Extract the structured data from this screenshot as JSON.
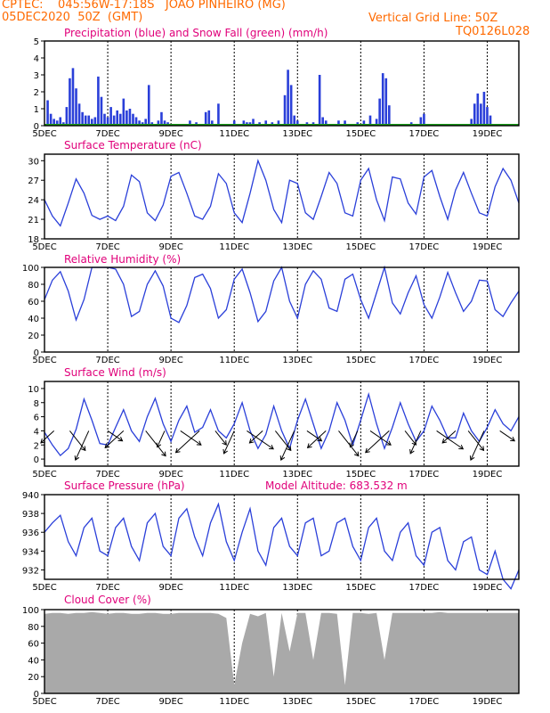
{
  "header": {
    "line1": "CPTEC:    045:56W-17:18S   JOAO PINHEIRO (MG)",
    "line2": "05DEC2020  50Z  (GMT)",
    "grid_note": "Vertical Grid Line: 50Z",
    "code": "TQ0126L028"
  },
  "colors": {
    "header": "#ff6a00",
    "title": "#e0007a",
    "line": "#2a3fd9",
    "precip": "#2a3fd9",
    "snow": "#1a9a1a",
    "cloud": "#a9a9a9",
    "grid": "#000000"
  },
  "x_labels": [
    "5DEC",
    "7DEC",
    "9DEC",
    "11DEC",
    "13DEC",
    "15DEC",
    "17DEC",
    "19DEC"
  ],
  "chart_data": [
    {
      "type": "bar",
      "title": "Precipitation (blue) and Snow Fall (green) (mm/h)",
      "xlim": [
        5,
        20
      ],
      "ylim": [
        0,
        5
      ],
      "yticks": [
        0,
        1,
        2,
        3,
        4,
        5
      ],
      "x": [
        5.1,
        5.2,
        5.3,
        5.4,
        5.5,
        5.6,
        5.7,
        5.8,
        5.9,
        6.0,
        6.1,
        6.2,
        6.3,
        6.4,
        6.5,
        6.6,
        6.7,
        6.8,
        6.9,
        7.0,
        7.1,
        7.2,
        7.3,
        7.4,
        7.5,
        7.6,
        7.7,
        7.8,
        7.9,
        8.0,
        8.1,
        8.2,
        8.3,
        8.4,
        8.5,
        8.6,
        8.7,
        8.8,
        8.9,
        9.6,
        9.8,
        10.1,
        10.2,
        10.3,
        10.5,
        11.0,
        11.3,
        11.4,
        11.5,
        11.6,
        11.8,
        12.0,
        12.2,
        12.4,
        12.6,
        12.7,
        12.8,
        12.9,
        13.0,
        13.1,
        13.3,
        13.5,
        13.7,
        13.8,
        13.9,
        14.3,
        14.5,
        14.9,
        15.1,
        15.3,
        15.5,
        15.6,
        15.7,
        15.8,
        15.9,
        16.6,
        16.9,
        17.0,
        18.5,
        18.6,
        18.7,
        18.8,
        18.9,
        19.0,
        19.1
      ],
      "values": [
        1.5,
        0.7,
        0.4,
        0.3,
        0.5,
        0.2,
        1.1,
        2.8,
        3.4,
        2.2,
        1.3,
        0.8,
        0.6,
        0.6,
        0.4,
        0.5,
        2.9,
        1.7,
        0.7,
        0.5,
        1.1,
        0.6,
        0.9,
        0.7,
        1.6,
        0.9,
        1.0,
        0.7,
        0.5,
        0.3,
        0.2,
        0.4,
        2.4,
        0.2,
        0.1,
        0.3,
        0.8,
        0.3,
        0.2,
        0.3,
        0.2,
        0.8,
        0.9,
        0.3,
        1.3,
        0.3,
        0.3,
        0.2,
        0.2,
        0.4,
        0.2,
        0.3,
        0.2,
        0.3,
        1.8,
        3.3,
        2.4,
        0.6,
        0.3,
        0.1,
        0.2,
        0.2,
        3.0,
        0.5,
        0.3,
        0.3,
        0.3,
        0.2,
        0.3,
        0.6,
        0.4,
        1.6,
        3.1,
        2.8,
        1.2,
        0.2,
        0.5,
        0.7,
        0.4,
        1.3,
        1.9,
        1.3,
        2.0,
        1.1,
        0.6
      ],
      "snow": 0
    },
    {
      "type": "line",
      "title": "Surface Temperature (nC)",
      "xlim": [
        5,
        20
      ],
      "ylim": [
        18,
        31
      ],
      "yticks": [
        18,
        21,
        24,
        27,
        30
      ],
      "x": [
        5.0,
        5.25,
        5.5,
        5.75,
        6.0,
        6.25,
        6.5,
        6.75,
        7.0,
        7.25,
        7.5,
        7.75,
        8.0,
        8.25,
        8.5,
        8.75,
        9.0,
        9.25,
        9.5,
        9.75,
        10.0,
        10.25,
        10.5,
        10.75,
        11.0,
        11.25,
        11.5,
        11.75,
        12.0,
        12.25,
        12.5,
        12.75,
        13.0,
        13.25,
        13.5,
        13.75,
        14.0,
        14.25,
        14.5,
        14.75,
        15.0,
        15.25,
        15.5,
        15.75,
        16.0,
        16.25,
        16.5,
        16.75,
        17.0,
        17.25,
        17.5,
        17.75,
        18.0,
        18.25,
        18.5,
        18.75,
        19.0,
        19.25,
        19.5,
        19.75,
        20.0
      ],
      "y": [
        24.0,
        21.5,
        20.0,
        23.5,
        27.2,
        25.0,
        21.6,
        21.0,
        21.5,
        20.8,
        23.0,
        27.8,
        26.8,
        22.0,
        20.8,
        23.2,
        27.6,
        28.2,
        25.0,
        21.5,
        21.0,
        23.0,
        28.0,
        26.5,
        22.0,
        20.5,
        25.0,
        30.0,
        27.0,
        22.5,
        20.5,
        27.0,
        26.5,
        22.0,
        21.0,
        24.5,
        28.2,
        26.5,
        22.0,
        21.5,
        27.0,
        28.8,
        24.0,
        20.8,
        27.5,
        27.2,
        23.5,
        21.8,
        27.5,
        28.5,
        24.5,
        21.0,
        25.5,
        28.2,
        25.0,
        22.0,
        21.5,
        26.0,
        28.8,
        27.0,
        23.5
      ]
    },
    {
      "type": "line",
      "title": "Relative Humidity (%)",
      "xlim": [
        5,
        20
      ],
      "ylim": [
        0,
        100
      ],
      "yticks": [
        0,
        20,
        40,
        60,
        80,
        100
      ],
      "x": [
        5.0,
        5.25,
        5.5,
        5.75,
        6.0,
        6.25,
        6.5,
        6.75,
        7.0,
        7.25,
        7.5,
        7.75,
        8.0,
        8.25,
        8.5,
        8.75,
        9.0,
        9.25,
        9.5,
        9.75,
        10.0,
        10.25,
        10.5,
        10.75,
        11.0,
        11.25,
        11.5,
        11.75,
        12.0,
        12.25,
        12.5,
        12.75,
        13.0,
        13.25,
        13.5,
        13.75,
        14.0,
        14.25,
        14.5,
        14.75,
        15.0,
        15.25,
        15.5,
        15.75,
        16.0,
        16.25,
        16.5,
        16.75,
        17.0,
        17.25,
        17.5,
        17.75,
        18.0,
        18.25,
        18.5,
        18.75,
        19.0,
        19.25,
        19.5,
        19.75,
        20.0
      ],
      "y": [
        62,
        85,
        95,
        72,
        38,
        62,
        100,
        100,
        100,
        98,
        80,
        42,
        48,
        80,
        96,
        78,
        40,
        35,
        55,
        88,
        92,
        75,
        40,
        50,
        86,
        98,
        70,
        36,
        48,
        84,
        100,
        60,
        40,
        80,
        96,
        86,
        52,
        48,
        86,
        92,
        62,
        40,
        70,
        100,
        58,
        45,
        70,
        90,
        56,
        40,
        65,
        94,
        70,
        48,
        60,
        85,
        84,
        50,
        42,
        58,
        72
      ]
    },
    {
      "type": "line",
      "title": "Surface Wind (m/s)",
      "xlim": [
        5,
        20
      ],
      "ylim": [
        -1,
        11
      ],
      "yticks": [
        0,
        2,
        4,
        6,
        8,
        10
      ],
      "x": [
        5.0,
        5.25,
        5.5,
        5.75,
        6.0,
        6.25,
        6.5,
        6.75,
        7.0,
        7.25,
        7.5,
        7.75,
        8.0,
        8.25,
        8.5,
        8.75,
        9.0,
        9.25,
        9.5,
        9.75,
        10.0,
        10.25,
        10.5,
        10.75,
        11.0,
        11.25,
        11.5,
        11.75,
        12.0,
        12.25,
        12.5,
        12.75,
        13.0,
        13.25,
        13.5,
        13.75,
        14.0,
        14.25,
        14.5,
        14.75,
        15.0,
        15.25,
        15.5,
        15.75,
        16.0,
        16.25,
        16.5,
        16.75,
        17.0,
        17.25,
        17.5,
        17.75,
        18.0,
        18.25,
        18.5,
        18.75,
        19.0,
        19.25,
        19.5,
        19.75,
        20.0
      ],
      "y": [
        3.8,
        2.0,
        0.5,
        1.5,
        4.2,
        8.5,
        5.5,
        2.2,
        2.0,
        4.5,
        7.0,
        4.0,
        2.5,
        6.0,
        8.6,
        5.0,
        2.5,
        5.5,
        7.5,
        3.8,
        4.5,
        7.0,
        4.0,
        3.0,
        5.0,
        8.0,
        4.0,
        1.5,
        3.5,
        7.5,
        4.0,
        1.5,
        5.5,
        8.5,
        5.0,
        1.5,
        4.0,
        8.0,
        5.5,
        2.0,
        5.5,
        9.2,
        5.0,
        1.5,
        4.5,
        8.0,
        5.0,
        2.5,
        4.0,
        7.5,
        5.5,
        3.0,
        3.0,
        6.5,
        4.0,
        2.5,
        4.5,
        7.0,
        5.0,
        4.0,
        6.0
      ],
      "arrows": [
        5.3,
        5.8,
        6.4,
        7.0,
        7.5,
        8.2,
        8.8,
        9.3,
        9.9,
        10.4,
        11.0,
        11.4,
        11.9,
        12.3,
        12.9,
        13.3,
        13.9,
        14.3,
        14.9,
        15.3,
        15.9,
        16.4,
        16.9,
        17.4,
        18.0,
        18.4,
        18.9,
        19.4
      ]
    },
    {
      "type": "line",
      "title": "Surface Pressure (hPa)",
      "subtitle": "Model Altitude: 683.532 m",
      "xlim": [
        5,
        20
      ],
      "ylim": [
        931,
        940
      ],
      "yticks": [
        932,
        934,
        936,
        938,
        940
      ],
      "x": [
        5.0,
        5.25,
        5.5,
        5.75,
        6.0,
        6.25,
        6.5,
        6.75,
        7.0,
        7.25,
        7.5,
        7.75,
        8.0,
        8.25,
        8.5,
        8.75,
        9.0,
        9.25,
        9.5,
        9.75,
        10.0,
        10.25,
        10.5,
        10.75,
        11.0,
        11.25,
        11.5,
        11.75,
        12.0,
        12.25,
        12.5,
        12.75,
        13.0,
        13.25,
        13.5,
        13.75,
        14.0,
        14.25,
        14.5,
        14.75,
        15.0,
        15.25,
        15.5,
        15.75,
        16.0,
        16.25,
        16.5,
        16.75,
        17.0,
        17.25,
        17.5,
        17.75,
        18.0,
        18.25,
        18.5,
        18.75,
        19.0,
        19.25,
        19.5,
        19.75,
        20.0
      ],
      "y": [
        936.0,
        937.0,
        937.8,
        935.0,
        933.5,
        936.5,
        937.5,
        934.0,
        933.5,
        936.5,
        937.5,
        934.5,
        933.0,
        937.0,
        938.0,
        934.5,
        933.5,
        937.5,
        938.5,
        935.5,
        933.5,
        937.0,
        939.0,
        935.0,
        933.0,
        936.0,
        938.5,
        934.0,
        932.5,
        936.5,
        937.5,
        934.5,
        933.5,
        937.0,
        937.5,
        933.5,
        934.0,
        937.0,
        937.5,
        934.5,
        933.0,
        936.5,
        937.5,
        934.0,
        933.0,
        936.0,
        937.0,
        933.5,
        932.5,
        936.0,
        936.5,
        933.0,
        932.0,
        935.0,
        935.5,
        932.0,
        931.5,
        934.0,
        931.0,
        930.0,
        932.0
      ]
    },
    {
      "type": "area",
      "title": "Cloud Cover (%)",
      "xlim": [
        5,
        20
      ],
      "ylim": [
        0,
        100
      ],
      "yticks": [
        0,
        20,
        40,
        60,
        80,
        100
      ],
      "x": [
        5.0,
        5.25,
        5.5,
        5.75,
        6.0,
        6.25,
        6.5,
        6.75,
        7.0,
        7.25,
        7.5,
        7.75,
        8.0,
        8.25,
        8.5,
        8.75,
        9.0,
        9.25,
        9.5,
        9.75,
        10.0,
        10.25,
        10.5,
        10.75,
        11.0,
        11.25,
        11.5,
        11.75,
        12.0,
        12.25,
        12.5,
        12.75,
        13.0,
        13.25,
        13.5,
        13.75,
        14.0,
        14.25,
        14.5,
        14.75,
        15.0,
        15.25,
        15.5,
        15.75,
        16.0,
        16.25,
        16.5,
        16.75,
        17.0,
        17.25,
        17.5,
        17.75,
        18.0,
        18.25,
        18.5,
        18.75,
        19.0,
        19.25,
        19.5,
        19.75,
        20.0
      ],
      "y": [
        95,
        96,
        96,
        95,
        96,
        96,
        97,
        96,
        95,
        96,
        96,
        95,
        95,
        96,
        96,
        95,
        95,
        96,
        96,
        96,
        96,
        96,
        95,
        90,
        10,
        60,
        95,
        92,
        96,
        20,
        96,
        50,
        96,
        96,
        40,
        96,
        96,
        95,
        10,
        96,
        96,
        95,
        96,
        40,
        96,
        96,
        96,
        96,
        96,
        96,
        97,
        96,
        96,
        96,
        96,
        96,
        96,
        96,
        96,
        96,
        96
      ]
    }
  ]
}
